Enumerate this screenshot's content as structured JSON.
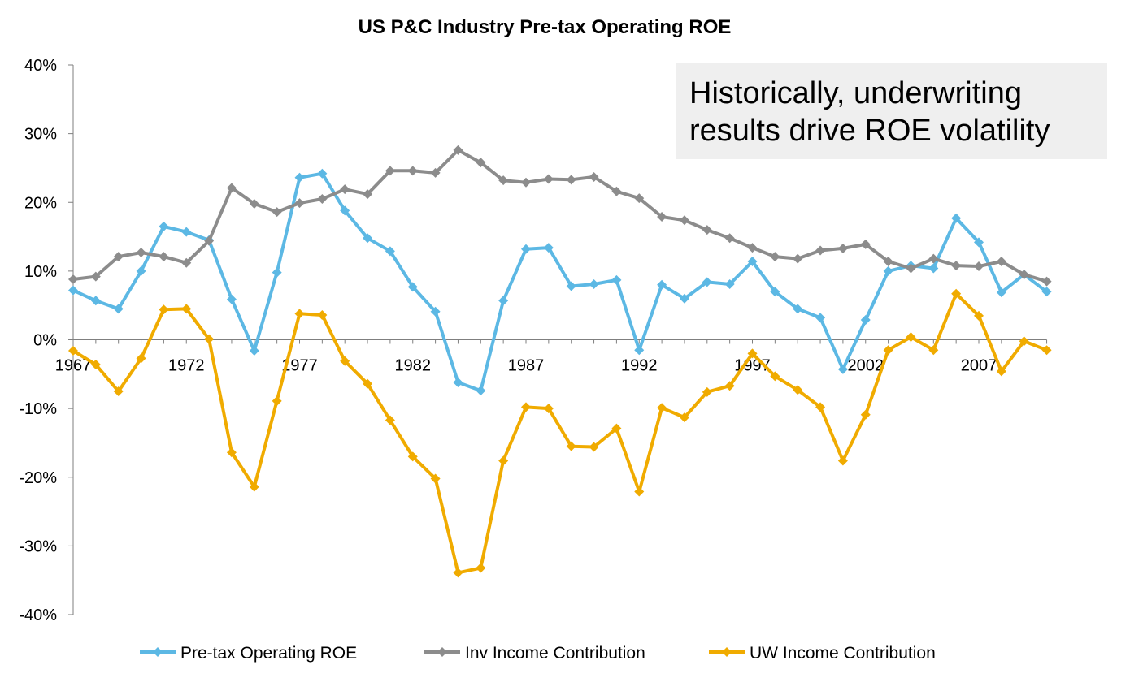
{
  "title": "US P&C Industry Pre-tax Operating ROE",
  "callout": {
    "line1": "Historically, underwriting",
    "line2": "results drive ROE volatility"
  },
  "colors": {
    "roe": "#5cb8e4",
    "inv": "#8c8c8c",
    "uw": "#f0ab00"
  },
  "chart_data": {
    "type": "line",
    "title": "US P&C Industry Pre-tax Operating ROE",
    "xlabel": "",
    "ylabel": "",
    "ylim": [
      -40,
      40
    ],
    "y_ticks": [
      "40%",
      "30%",
      "20%",
      "10%",
      "0%",
      "-10%",
      "-20%",
      "-30%",
      "-40%"
    ],
    "y_tick_values": [
      40,
      30,
      20,
      10,
      0,
      -10,
      -20,
      -30,
      -40
    ],
    "x_tick_labels": [
      "1967",
      "1972",
      "1977",
      "1982",
      "1987",
      "1992",
      "1997",
      "2002",
      "2007"
    ],
    "x_tick_years": [
      1967,
      1972,
      1977,
      1982,
      1987,
      1992,
      1997,
      2002,
      2007
    ],
    "x": [
      1967,
      1968,
      1969,
      1970,
      1971,
      1972,
      1973,
      1974,
      1975,
      1976,
      1977,
      1978,
      1979,
      1980,
      1981,
      1982,
      1983,
      1984,
      1985,
      1986,
      1987,
      1988,
      1989,
      1990,
      1991,
      1992,
      1993,
      1994,
      1995,
      1996,
      1997,
      1998,
      1999,
      2000,
      2001,
      2002,
      2003,
      2004,
      2005,
      2006,
      2007,
      2008,
      2009,
      2010
    ],
    "legend_position": "bottom",
    "grid": false,
    "series": [
      {
        "name": "Pre-tax Operating ROE",
        "values": [
          7.2,
          5.7,
          4.5,
          10.0,
          16.5,
          15.7,
          14.5,
          5.9,
          -1.6,
          9.8,
          23.6,
          24.2,
          18.8,
          14.8,
          12.9,
          7.7,
          4.1,
          -6.2,
          -7.4,
          5.7,
          13.2,
          13.4,
          7.8,
          8.1,
          8.7,
          -1.5,
          8.0,
          6.0,
          8.4,
          8.1,
          11.4,
          7.0,
          4.5,
          3.2,
          -4.3,
          2.9,
          10.0,
          10.8,
          10.4,
          17.7,
          14.2,
          6.9,
          9.5,
          7.0
        ]
      },
      {
        "name": "Inv Income Contribution",
        "values": [
          8.8,
          9.2,
          12.1,
          12.7,
          12.1,
          11.2,
          14.4,
          22.1,
          19.8,
          18.6,
          19.9,
          20.5,
          21.9,
          21.2,
          24.6,
          24.6,
          24.3,
          27.6,
          25.8,
          23.2,
          22.9,
          23.4,
          23.3,
          23.7,
          21.6,
          20.6,
          17.9,
          17.4,
          16.0,
          14.8,
          13.4,
          12.1,
          11.8,
          13.0,
          13.3,
          13.9,
          11.4,
          10.4,
          11.8,
          10.8,
          10.7,
          11.4,
          9.5,
          8.5
        ]
      },
      {
        "name": "UW Income Contribution",
        "values": [
          -1.6,
          -3.6,
          -7.5,
          -2.7,
          4.4,
          4.5,
          0.1,
          -16.4,
          -21.4,
          -8.9,
          3.8,
          3.6,
          -3.1,
          -6.4,
          -11.7,
          -17.0,
          -20.2,
          -33.9,
          -33.2,
          -17.6,
          -9.8,
          -10.0,
          -15.5,
          -15.6,
          -12.9,
          -22.1,
          -9.9,
          -11.3,
          -7.6,
          -6.7,
          -2.0,
          -5.3,
          -7.3,
          -9.8,
          -17.6,
          -10.9,
          -1.5,
          0.4,
          -1.5,
          6.7,
          3.5,
          -4.6,
          -0.2,
          -1.5
        ]
      }
    ]
  }
}
